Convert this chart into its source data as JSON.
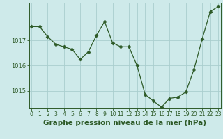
{
  "x": [
    0,
    1,
    2,
    3,
    4,
    5,
    6,
    7,
    8,
    9,
    10,
    11,
    12,
    13,
    14,
    15,
    16,
    17,
    18,
    19,
    20,
    21,
    22,
    23
  ],
  "y": [
    1017.55,
    1017.55,
    1017.15,
    1016.85,
    1016.75,
    1016.65,
    1016.25,
    1016.55,
    1017.2,
    1017.75,
    1016.9,
    1016.75,
    1016.75,
    1016.0,
    1014.85,
    1014.6,
    1014.35,
    1014.7,
    1014.75,
    1014.95,
    1015.85,
    1017.05,
    1018.15,
    1018.35
  ],
  "line_color": "#2d5a27",
  "marker": "D",
  "marker_size": 2.5,
  "background_color": "#ceeaea",
  "grid_color": "#aacece",
  "ylim_min": 1014.3,
  "ylim_max": 1018.5,
  "yticks": [
    1015,
    1016,
    1017
  ],
  "xlabel": "Graphe pression niveau de la mer (hPa)",
  "xlim_min": -0.3,
  "xlim_max": 23.3,
  "tick_label_color": "#2d5a27",
  "x_labelsize": 5.5,
  "y_labelsize": 6.0,
  "xlabel_fontsize": 7.5,
  "xlabel_fontweight": "bold"
}
